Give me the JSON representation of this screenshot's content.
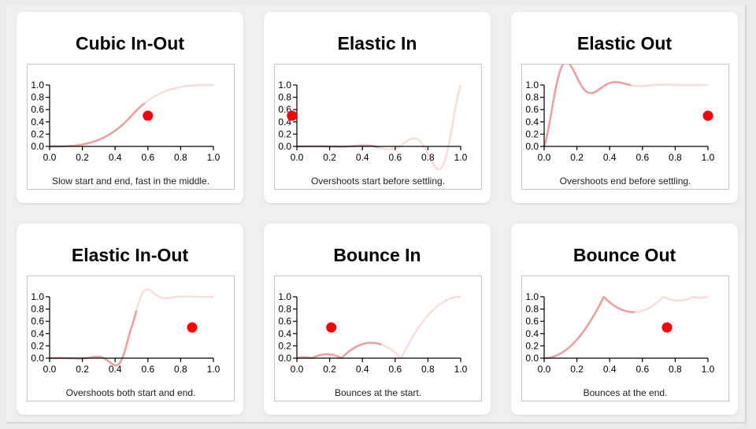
{
  "chart_data": [
    {
      "type": "line",
      "easing": "cubicInOut",
      "title": "Cubic In-Out",
      "description": "Slow start and end, fast in the middle.",
      "x": [
        0,
        0.2,
        0.4,
        0.6,
        0.8,
        1.0
      ],
      "xlim": [
        0,
        1
      ],
      "ylim": [
        0,
        1
      ],
      "xticks": [
        "0.0",
        "0.2",
        "0.4",
        "0.6",
        "0.8",
        "1.0"
      ],
      "yticks": [
        "0.0",
        "0.2",
        "0.4",
        "0.6",
        "0.8",
        "1.0"
      ],
      "progress": 0.58,
      "marker": {
        "x": 0.6,
        "y": 0.5
      },
      "line_color": "#e8a0a0",
      "marker_color": "#ff0000"
    },
    {
      "type": "line",
      "easing": "elasticIn",
      "title": "Elastic In",
      "description": "Overshoots start before settling.",
      "xlim": [
        0,
        1
      ],
      "ylim": [
        0,
        1
      ],
      "xticks": [
        "0.0",
        "0.2",
        "0.4",
        "0.6",
        "0.8",
        "1.0"
      ],
      "yticks": [
        "0.0",
        "0.2",
        "0.4",
        "0.6",
        "0.8",
        "1.0"
      ],
      "progress": 0.5,
      "marker": {
        "x": -0.03,
        "y": 0.5
      },
      "line_color": "#e8a0a0",
      "marker_color": "#ff0000"
    },
    {
      "type": "line",
      "easing": "elasticOut",
      "title": "Elastic Out",
      "description": "Overshoots end before settling.",
      "xlim": [
        0,
        1
      ],
      "ylim": [
        0,
        1
      ],
      "xticks": [
        "0.0",
        "0.2",
        "0.4",
        "0.6",
        "0.8",
        "1.0"
      ],
      "yticks": [
        "0.0",
        "0.2",
        "0.4",
        "0.6",
        "0.8",
        "1.0"
      ],
      "progress": 0.53,
      "marker": {
        "x": 1.0,
        "y": 0.5
      },
      "line_color": "#e8a0a0",
      "marker_color": "#ff0000"
    },
    {
      "type": "line",
      "easing": "elasticInOut",
      "title": "Elastic In-Out",
      "description": "Overshoots both start and end.",
      "xlim": [
        0,
        1
      ],
      "ylim": [
        0,
        1
      ],
      "xticks": [
        "0.0",
        "0.2",
        "0.4",
        "0.6",
        "0.8",
        "1.0"
      ],
      "yticks": [
        "0.0",
        "0.2",
        "0.4",
        "0.6",
        "0.8",
        "1.0"
      ],
      "progress": 0.53,
      "marker": {
        "x": 0.87,
        "y": 0.5
      },
      "line_color": "#e8a0a0",
      "marker_color": "#ff0000"
    },
    {
      "type": "line",
      "easing": "bounceIn",
      "title": "Bounce In",
      "description": "Bounces at the start.",
      "xlim": [
        0,
        1
      ],
      "ylim": [
        0,
        1
      ],
      "xticks": [
        "0.0",
        "0.2",
        "0.4",
        "0.6",
        "0.8",
        "1.0"
      ],
      "yticks": [
        "0.0",
        "0.2",
        "0.4",
        "0.6",
        "0.8",
        "1.0"
      ],
      "progress": 0.52,
      "marker": {
        "x": 0.21,
        "y": 0.5
      },
      "line_color": "#e8a0a0",
      "marker_color": "#ff0000"
    },
    {
      "type": "line",
      "easing": "bounceOut",
      "title": "Bounce Out",
      "description": "Bounces at the end.",
      "xlim": [
        0,
        1
      ],
      "ylim": [
        0,
        1
      ],
      "xticks": [
        "0.0",
        "0.2",
        "0.4",
        "0.6",
        "0.8",
        "1.0"
      ],
      "yticks": [
        "0.0",
        "0.2",
        "0.4",
        "0.6",
        "0.8",
        "1.0"
      ],
      "progress": 0.55,
      "marker": {
        "x": 0.75,
        "y": 0.5
      },
      "line_color": "#e8a0a0",
      "marker_color": "#ff0000"
    }
  ]
}
